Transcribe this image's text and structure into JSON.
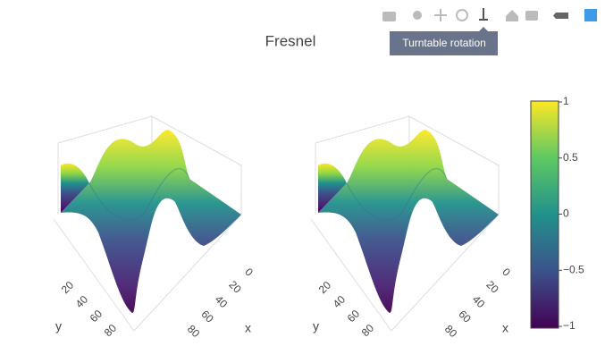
{
  "toolbar": {
    "tooltip": "Turntable rotation"
  },
  "chart_data": {
    "type": "surface",
    "title": "Fresnel",
    "colorscale": "viridis",
    "zlim": [
      -1,
      1
    ],
    "zticks": [
      1,
      0.5,
      0,
      {
        "value": -0.5,
        "label": "−0.5"
      },
      {
        "value": -1,
        "label": "−1"
      }
    ],
    "scenes": [
      {
        "xaxis_title": "x",
        "yaxis_title": "y",
        "xticks": [
          0,
          20,
          40,
          60,
          80
        ],
        "yticks": [
          20,
          40,
          60,
          80
        ]
      },
      {
        "xaxis_title": "x",
        "yaxis_title": "y",
        "xticks": [
          0,
          20,
          40,
          60,
          80
        ],
        "yticks": [
          20,
          40,
          60,
          80
        ]
      }
    ]
  }
}
